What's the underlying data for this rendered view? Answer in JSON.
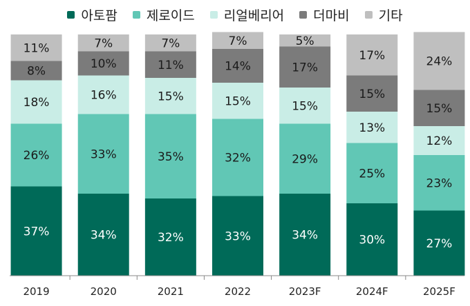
{
  "chart_data": {
    "type": "bar",
    "stacked": true,
    "normalized_percent": true,
    "categories": [
      "2019",
      "2020",
      "2021",
      "2022",
      "2023F",
      "2024F",
      "2025F"
    ],
    "series": [
      {
        "name": "아토팜",
        "color": "#006a58",
        "label_color": "#ffffff",
        "values": [
          37,
          34,
          32,
          33,
          34,
          30,
          27
        ]
      },
      {
        "name": "제로이드",
        "color": "#61c7b5",
        "label_color": "#1a1a1a",
        "values": [
          26,
          33,
          35,
          32,
          29,
          25,
          23
        ]
      },
      {
        "name": "리얼베리어",
        "color": "#c9ede6",
        "label_color": "#1a1a1a",
        "values": [
          18,
          16,
          15,
          15,
          15,
          13,
          12
        ]
      },
      {
        "name": "더마비",
        "color": "#7b7b7b",
        "label_color": "#1a1a1a",
        "values": [
          8,
          10,
          11,
          14,
          17,
          15,
          15
        ]
      },
      {
        "name": "기타",
        "color": "#bfbfbf",
        "label_color": "#1a1a1a",
        "values": [
          11,
          7,
          7,
          7,
          5,
          17,
          24
        ]
      }
    ],
    "data_label_suffix": "%",
    "ylim": [
      0,
      100
    ],
    "legend_position": "top"
  }
}
